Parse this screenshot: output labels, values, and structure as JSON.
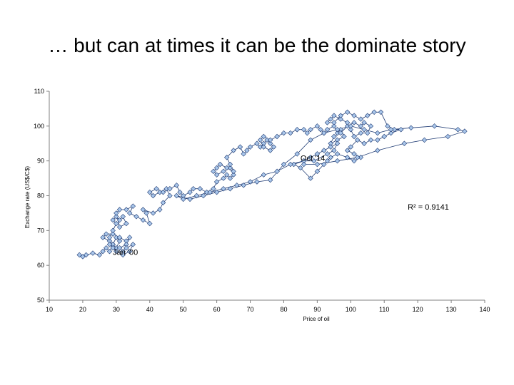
{
  "slide": {
    "title": "… but can at times it can be the dominate story"
  },
  "chart_data": {
    "type": "scatter",
    "title": "",
    "xlabel": "Price of oil",
    "ylabel": "Exchange rate (US$/C$)",
    "xlim": [
      10,
      140
    ],
    "ylim": [
      50,
      110
    ],
    "xticks": [
      10,
      20,
      30,
      40,
      50,
      60,
      70,
      80,
      90,
      100,
      110,
      120,
      130,
      140
    ],
    "yticks": [
      50,
      60,
      70,
      80,
      90,
      100,
      110
    ],
    "grid": false,
    "connected": true,
    "marker": "diamond",
    "marker_color": "#a9c6ea",
    "line_color": "#1f3b73",
    "annotations": [
      {
        "text": "Jan '00",
        "x": 29,
        "y": 63
      },
      {
        "text": "Oct '14",
        "x": 85,
        "y": 90
      },
      {
        "text": "R² = 0.9141",
        "x": 117,
        "y": 76
      }
    ],
    "series": [
      {
        "points": [
          [
            19,
            63
          ],
          [
            20,
            62.5
          ],
          [
            21,
            63
          ],
          [
            23,
            63.5
          ],
          [
            25,
            63
          ],
          [
            26,
            64
          ],
          [
            27,
            65
          ],
          [
            28,
            64
          ],
          [
            29,
            66
          ],
          [
            30,
            65
          ],
          [
            31,
            67
          ],
          [
            30,
            68
          ],
          [
            29,
            66
          ],
          [
            28,
            67
          ],
          [
            26,
            68
          ],
          [
            27,
            69
          ],
          [
            29,
            69
          ],
          [
            31,
            68
          ],
          [
            33,
            67
          ],
          [
            34,
            68
          ],
          [
            33,
            66
          ],
          [
            31,
            65
          ],
          [
            32,
            64
          ],
          [
            33,
            65
          ],
          [
            35,
            66
          ],
          [
            34,
            64
          ],
          [
            32,
            63
          ],
          [
            30,
            64
          ],
          [
            29,
            65
          ],
          [
            28,
            66
          ],
          [
            28,
            68
          ],
          [
            29,
            70
          ],
          [
            30,
            72
          ],
          [
            29,
            73
          ],
          [
            30,
            74
          ],
          [
            31,
            73
          ],
          [
            32,
            74
          ],
          [
            33,
            72
          ],
          [
            31,
            71
          ],
          [
            30,
            75
          ],
          [
            31,
            76
          ],
          [
            33,
            76
          ],
          [
            35,
            77
          ],
          [
            34,
            75
          ],
          [
            36,
            74
          ],
          [
            38,
            73
          ],
          [
            40,
            72
          ],
          [
            39,
            75
          ],
          [
            38,
            76
          ],
          [
            41,
            75
          ],
          [
            43,
            76
          ],
          [
            44,
            78
          ],
          [
            46,
            80
          ],
          [
            45,
            82
          ],
          [
            43,
            81
          ],
          [
            41,
            80
          ],
          [
            40,
            81
          ],
          [
            42,
            82
          ],
          [
            44,
            81
          ],
          [
            46,
            82
          ],
          [
            48,
            83
          ],
          [
            49,
            81
          ],
          [
            50,
            80
          ],
          [
            52,
            81
          ],
          [
            53,
            82
          ],
          [
            55,
            82
          ],
          [
            57,
            81
          ],
          [
            59,
            82
          ],
          [
            60,
            84
          ],
          [
            62,
            85
          ],
          [
            63,
            86
          ],
          [
            64,
            85
          ],
          [
            65,
            86
          ],
          [
            64,
            88
          ],
          [
            62,
            87
          ],
          [
            60,
            86
          ],
          [
            59,
            87
          ],
          [
            60,
            88
          ],
          [
            61,
            89
          ],
          [
            63,
            88
          ],
          [
            65,
            87
          ],
          [
            64,
            89
          ],
          [
            63,
            91
          ],
          [
            65,
            93
          ],
          [
            67,
            94
          ],
          [
            68,
            92
          ],
          [
            69,
            93
          ],
          [
            70,
            94
          ],
          [
            72,
            95
          ],
          [
            73,
            94
          ],
          [
            74,
            95
          ],
          [
            75,
            96
          ],
          [
            76,
            95
          ],
          [
            77,
            94
          ],
          [
            76,
            93
          ],
          [
            74,
            94
          ],
          [
            73,
            96
          ],
          [
            74,
            97
          ],
          [
            76,
            96
          ],
          [
            78,
            97
          ],
          [
            80,
            98
          ],
          [
            82,
            98
          ],
          [
            84,
            99
          ],
          [
            86,
            99
          ],
          [
            87,
            98
          ],
          [
            88,
            99
          ],
          [
            90,
            100
          ],
          [
            91,
            99
          ],
          [
            92,
            98
          ],
          [
            93,
            99
          ],
          [
            95,
            100
          ],
          [
            96,
            98
          ],
          [
            97,
            99
          ],
          [
            98,
            97
          ],
          [
            96,
            96
          ],
          [
            94,
            95
          ],
          [
            95,
            97
          ],
          [
            97,
            98
          ],
          [
            99,
            100
          ],
          [
            101,
            101
          ],
          [
            103,
            100
          ],
          [
            104,
            101
          ],
          [
            106,
            100
          ],
          [
            105,
            98
          ],
          [
            103,
            98
          ],
          [
            101,
            97
          ],
          [
            100,
            99
          ],
          [
            99,
            101
          ],
          [
            97,
            102
          ],
          [
            95,
            103
          ],
          [
            94,
            102
          ],
          [
            93,
            101
          ],
          [
            95,
            101
          ],
          [
            97,
            103
          ],
          [
            99,
            104
          ],
          [
            101,
            103
          ],
          [
            103,
            102
          ],
          [
            105,
            103
          ],
          [
            107,
            104
          ],
          [
            109,
            104
          ],
          [
            111,
            100
          ],
          [
            113,
            99
          ],
          [
            115,
            99
          ],
          [
            112,
            98
          ],
          [
            110,
            97
          ],
          [
            108,
            96
          ],
          [
            106,
            96
          ],
          [
            104,
            95
          ],
          [
            102,
            96
          ],
          [
            100,
            94
          ],
          [
            99,
            93
          ],
          [
            101,
            92
          ],
          [
            103,
            91
          ],
          [
            101,
            90
          ],
          [
            99,
            91
          ],
          [
            96,
            92
          ],
          [
            94,
            91
          ],
          [
            93,
            90
          ],
          [
            92,
            89
          ],
          [
            90,
            87
          ],
          [
            88,
            85
          ],
          [
            85,
            88
          ],
          [
            83,
            89
          ],
          [
            86,
            90
          ],
          [
            88,
            91
          ],
          [
            90,
            92
          ],
          [
            92,
            93
          ],
          [
            94,
            94
          ],
          [
            96,
            95
          ],
          [
            95,
            93
          ],
          [
            93,
            92
          ],
          [
            89,
            90
          ],
          [
            86,
            90
          ],
          [
            82,
            89
          ],
          [
            78,
            87
          ],
          [
            74,
            86
          ],
          [
            70,
            84
          ],
          [
            66,
            83
          ],
          [
            62,
            82
          ],
          [
            58,
            81
          ],
          [
            54,
            80
          ],
          [
            50,
            79
          ],
          [
            48,
            80
          ],
          [
            52,
            79
          ],
          [
            56,
            80
          ],
          [
            60,
            81
          ],
          [
            64,
            82
          ],
          [
            68,
            83
          ],
          [
            72,
            84
          ],
          [
            76,
            84.5
          ],
          [
            80,
            89
          ],
          [
            84,
            92
          ],
          [
            88,
            96
          ],
          [
            92,
            98
          ],
          [
            96,
            99
          ],
          [
            100,
            100
          ],
          [
            104,
            99
          ],
          [
            108,
            98
          ],
          [
            112,
            99
          ],
          [
            118,
            99.5
          ],
          [
            125,
            100
          ],
          [
            132,
            99
          ],
          [
            134,
            98.5
          ],
          [
            129,
            97
          ],
          [
            122,
            96
          ],
          [
            116,
            95
          ],
          [
            108,
            93
          ],
          [
            102,
            91
          ],
          [
            96,
            90
          ],
          [
            90,
            89
          ],
          [
            86,
            89
          ]
        ]
      }
    ]
  }
}
